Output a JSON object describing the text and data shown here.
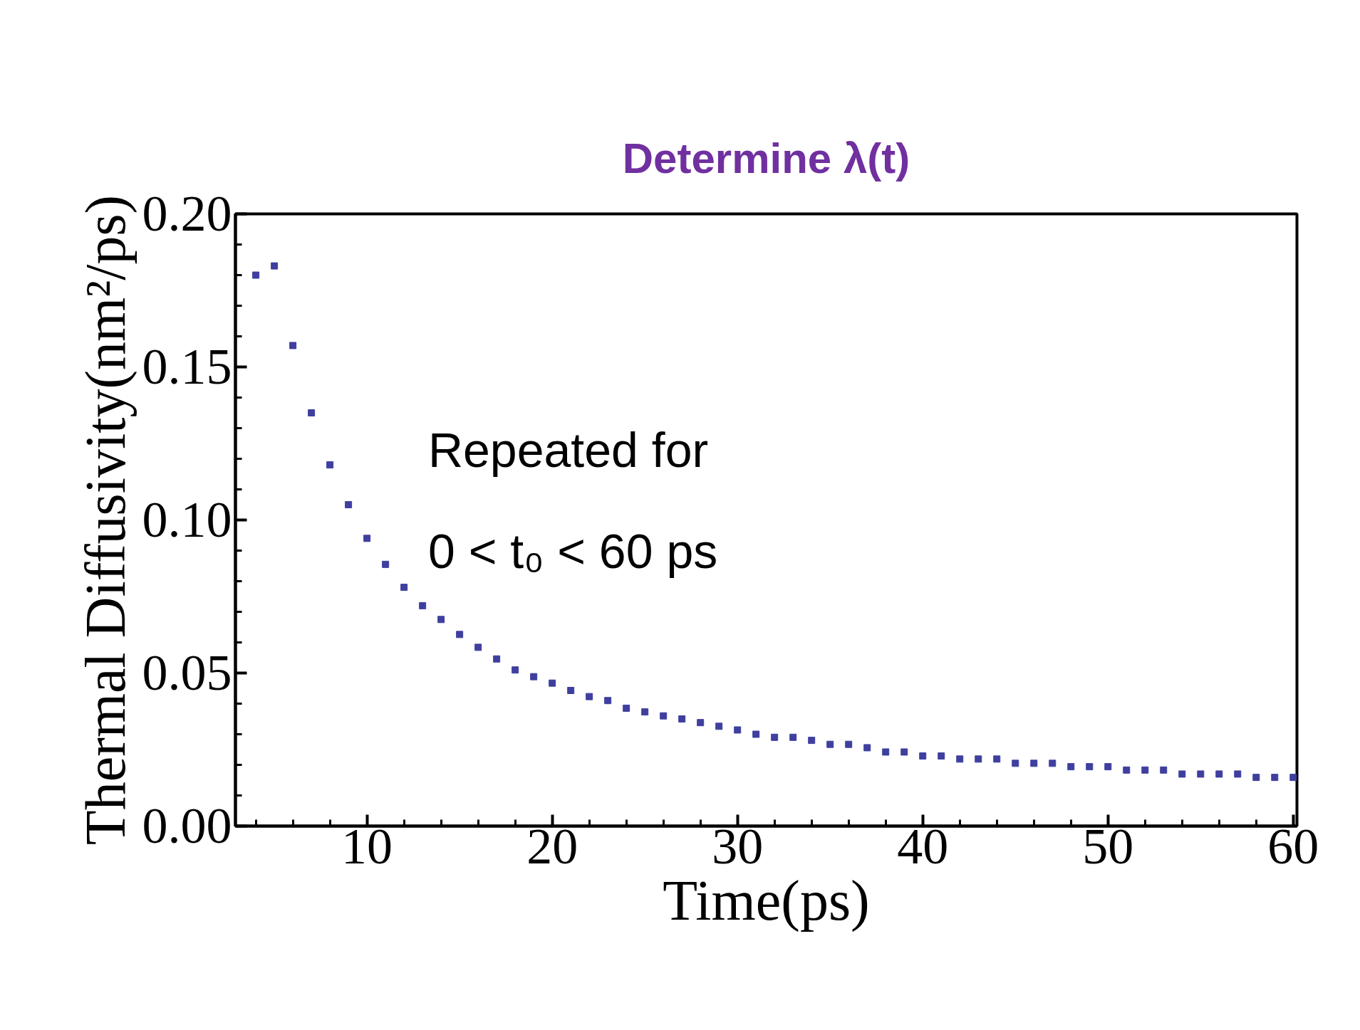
{
  "chart_data": {
    "type": "scatter",
    "title": "Determine λ(t)",
    "xlabel": "Time(ps)",
    "ylabel": "Thermal Diffusivity(nm²/ps)",
    "annotations": [
      "Repeated for",
      "0 < t₀ < 60 ps"
    ],
    "x": [
      4,
      5,
      6,
      7,
      8,
      9,
      10,
      11,
      12,
      13,
      14,
      15,
      16,
      17,
      18,
      19,
      20,
      21,
      22,
      23,
      24,
      25,
      26,
      27,
      28,
      29,
      30,
      31,
      32,
      33,
      34,
      35,
      36,
      37,
      38,
      39,
      40,
      41,
      42,
      43,
      44,
      45,
      46,
      47,
      48,
      49,
      50,
      51,
      52,
      53,
      54,
      55,
      56,
      57,
      58,
      59,
      60
    ],
    "series": [
      {
        "color": "#3f3f9f",
        "values": [
          0.18,
          0.183,
          0.157,
          0.135,
          0.118,
          0.105,
          0.094,
          0.0855,
          0.078,
          0.072,
          0.0675,
          0.0626,
          0.0584,
          0.0546,
          0.051,
          0.0488,
          0.0467,
          0.0443,
          0.0423,
          0.041,
          0.0385,
          0.0373,
          0.036,
          0.035,
          0.0338,
          0.0326,
          0.0314,
          0.03,
          0.029,
          0.029,
          0.028,
          0.0267,
          0.0267,
          0.0256,
          0.0242,
          0.0242,
          0.0229,
          0.0229,
          0.0219,
          0.0219,
          0.0219,
          0.0205,
          0.0205,
          0.0205,
          0.0194,
          0.0194,
          0.0194,
          0.0183,
          0.0183,
          0.0183,
          0.017,
          0.017,
          0.017,
          0.017,
          0.0159,
          0.0159,
          0.0159
        ]
      }
    ],
    "xlim": [
      2.9,
      60.2
    ],
    "ylim": [
      0,
      0.2
    ],
    "xticks": [
      10,
      20,
      30,
      40,
      50,
      60
    ],
    "yticks": [
      {
        "value": 0,
        "label": "0.00"
      },
      0.05,
      {
        "value": 0.1,
        "label": "0.10"
      },
      0.15,
      {
        "value": 0.2,
        "label": "0.20"
      }
    ],
    "marker": "square",
    "grid": false
  }
}
